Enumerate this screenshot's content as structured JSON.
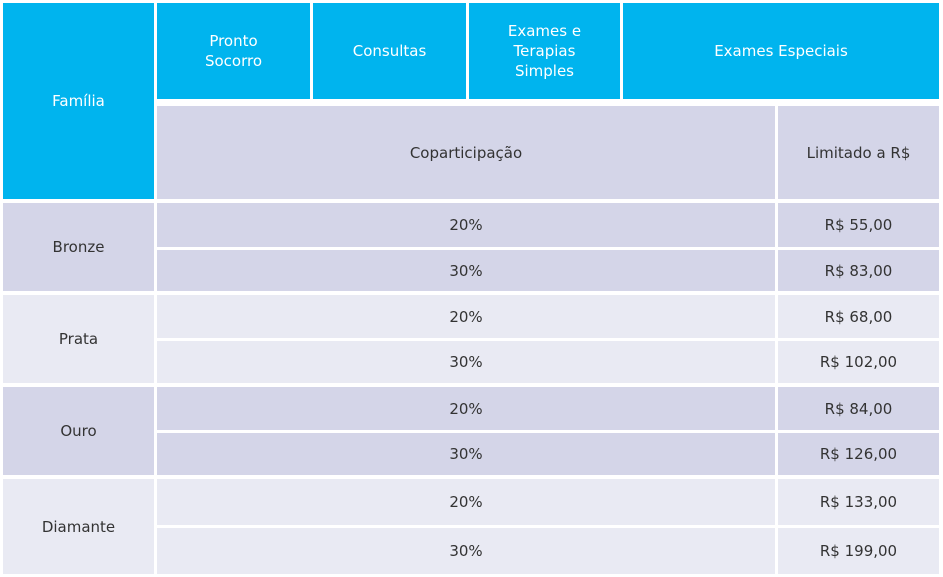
{
  "header": {
    "familia": "Família",
    "col1": [
      "Pronto",
      "Socorro"
    ],
    "col2": "Consultas",
    "col3": [
      "Exames e",
      "Terapias",
      "Simples"
    ],
    "col4": "Exames Especiais",
    "coparticipacao": "Coparticipação",
    "limitado": "Limitado a R$"
  },
  "families": [
    {
      "name": "Bronze",
      "rows": [
        {
          "pct": "20%",
          "limit": "R$ 55,00"
        },
        {
          "pct": "30%",
          "limit": "R$ 83,00"
        }
      ]
    },
    {
      "name": "Prata",
      "rows": [
        {
          "pct": "20%",
          "limit": "R$ 68,00"
        },
        {
          "pct": "30%",
          "limit": "R$ 102,00"
        }
      ]
    },
    {
      "name": "Ouro",
      "rows": [
        {
          "pct": "20%",
          "limit": "R$ 84,00"
        },
        {
          "pct": "30%",
          "limit": "R$ 126,00"
        }
      ]
    },
    {
      "name": "Diamante",
      "rows": [
        {
          "pct": "20%",
          "limit": "R$ 133,00"
        },
        {
          "pct": "30%",
          "limit": "R$ 199,00"
        }
      ]
    }
  ]
}
